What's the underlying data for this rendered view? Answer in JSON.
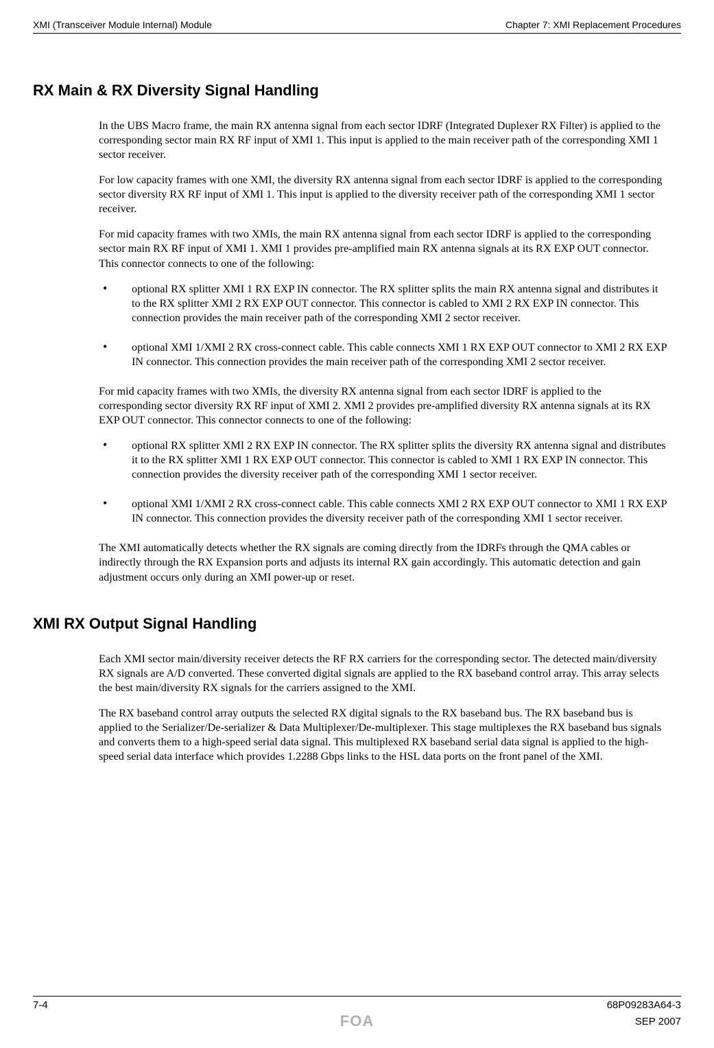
{
  "header": {
    "left": "XMI (Transceiver Module Internal) Module",
    "right": "Chapter 7: XMI Replacement Procedures"
  },
  "sections": [
    {
      "heading": "RX Main & RX Diversity Signal Handling",
      "paragraphs_top": [
        "In the UBS Macro frame, the main RX antenna signal from each sector IDRF (Integrated Duplexer RX Filter) is applied to the corresponding sector main RX RF input of XMI 1. This input is applied to the main receiver path of the corresponding XMI 1 sector receiver.",
        "For low capacity frames with one XMI, the diversity RX antenna signal from each sector IDRF is applied to the corresponding sector diversity RX RF input of XMI 1. This input is applied to the diversity receiver path of the corresponding XMI 1 sector receiver.",
        "For mid capacity frames with two XMIs, the main RX antenna signal from each sector IDRF is applied to the corresponding sector main RX RF input of XMI 1. XMI 1 provides pre-amplified main RX antenna signals at its RX EXP OUT connector. This connector connects to one of the following:"
      ],
      "bullets_a": [
        "optional RX splitter XMI 1 RX EXP IN connector. The RX splitter splits the main RX antenna signal and distributes it to the RX splitter XMI 2 RX EXP OUT connector. This connector is cabled to XMI 2 RX EXP IN connector. This connection provides the main receiver path of the corresponding XMI 2 sector receiver.",
        "optional XMI 1/XMI 2 RX cross-connect cable. This cable connects XMI 1 RX EXP OUT connector to XMI 2 RX EXP IN connector. This connection provides the main receiver path of the corresponding XMI 2 sector receiver."
      ],
      "paragraphs_mid": [
        "For mid capacity frames with two XMIs, the diversity RX antenna signal from each sector IDRF is applied to the corresponding sector diversity RX RF input of XMI 2. XMI 2 provides pre-amplified diversity RX antenna signals at its RX EXP OUT connector. This connector connects to one of the following:"
      ],
      "bullets_b": [
        "optional RX splitter XMI 2 RX EXP IN connector. The RX splitter splits the diversity RX antenna signal and distributes it to the RX splitter XMI 1 RX EXP OUT connector. This connector is cabled to XMI 1 RX EXP IN connector. This connection provides the diversity receiver path of the corresponding XMI 1 sector receiver.",
        "optional XMI 1/XMI 2 RX cross-connect cable. This cable connects XMI 2 RX EXP OUT connector to XMI 1 RX EXP IN connector. This connection provides the diversity receiver path of the corresponding XMI 1 sector receiver."
      ],
      "paragraphs_bottom": [
        "The XMI automatically detects whether the RX signals are coming directly from the IDRFs through the QMA cables or indirectly through the RX Expansion ports and adjusts its internal RX gain accordingly. This automatic detection and gain adjustment occurs only during an XMI power-up or reset."
      ]
    },
    {
      "heading": "XMI RX Output Signal Handling",
      "paragraphs_top": [
        "Each XMI sector main/diversity receiver detects the RF RX carriers for the corresponding sector. The detected main/diversity RX signals are A/D converted. These converted digital signals are applied to the RX baseband control array. This array selects the best main/diversity RX signals for the carriers assigned to the XMI.",
        "The RX baseband control array outputs the selected RX digital signals to the RX baseband bus. The RX baseband bus is applied to the Serializer/De-serializer & Data Multiplexer/De-multiplexer. This stage multiplexes the RX baseband bus signals and converts them to a high-speed serial data signal. This multiplexed RX baseband serial data signal is applied to the high-speed serial data interface which provides 1.2288 Gbps links to the HSL data ports on the front panel of the XMI."
      ],
      "bullets_a": [],
      "paragraphs_mid": [],
      "bullets_b": [],
      "paragraphs_bottom": []
    }
  ],
  "footer": {
    "page_number": "7-4",
    "doc_number": "68P09283A64-3",
    "watermark": "FOA",
    "date": "SEP 2007"
  }
}
